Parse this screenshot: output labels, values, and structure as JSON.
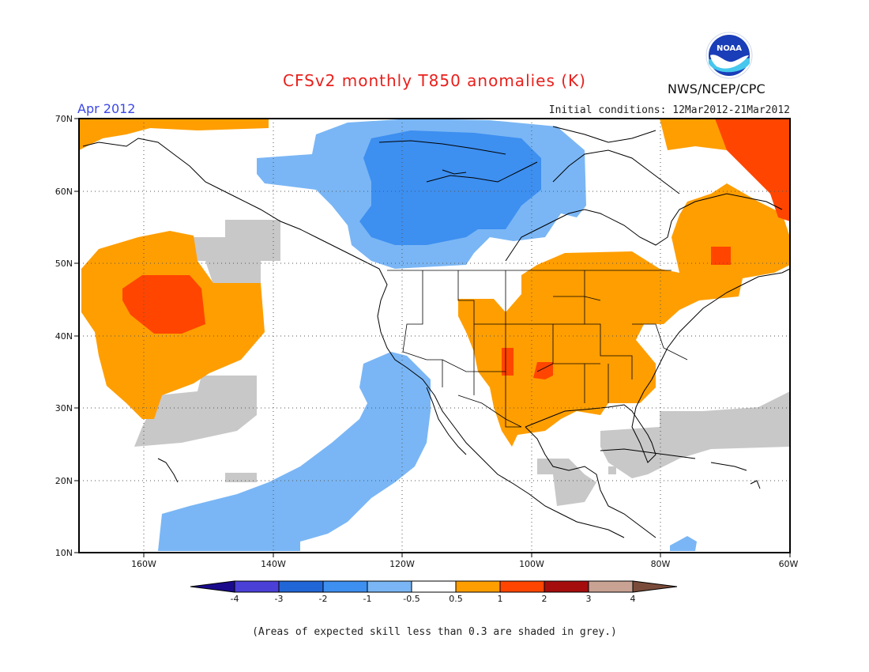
{
  "title": "CFSv2 monthly T850 anomalies (K)",
  "period": "Apr 2012",
  "initial_conditions": "Initial conditions: 12Mar2012-21Mar2012",
  "agency": "NWS/NCEP/CPC",
  "logo_text": "NOAA",
  "note": "(Areas of expected skill less than 0.3 are shaded in grey.)",
  "lat_labels": [
    "70N",
    "60N",
    "50N",
    "40N",
    "30N",
    "20N",
    "10N"
  ],
  "lon_labels": [
    "160W",
    "140W",
    "120W",
    "100W",
    "80W",
    "60W"
  ],
  "colorbar": {
    "labels": [
      "-4",
      "-3",
      "-2",
      "-1",
      "-0.5",
      "0.5",
      "1",
      "2",
      "3",
      "4"
    ],
    "colors": [
      "#1a0b8c",
      "#4a3fd6",
      "#2166d6",
      "#3d8ff0",
      "#7ab6f5",
      "#ffffff",
      "#ff9e00",
      "#ff4500",
      "#a50d0d",
      "#c8a293",
      "#7a4b3a"
    ]
  },
  "colors": {
    "ocean": "#ffffff",
    "grey_low_skill": "#c8c8c8",
    "warm_05_1": "#ff9e00",
    "warm_1_2": "#ff4500",
    "cool_05_1": "#7ab6f5",
    "cool_1_2": "#3d8ff0"
  }
}
